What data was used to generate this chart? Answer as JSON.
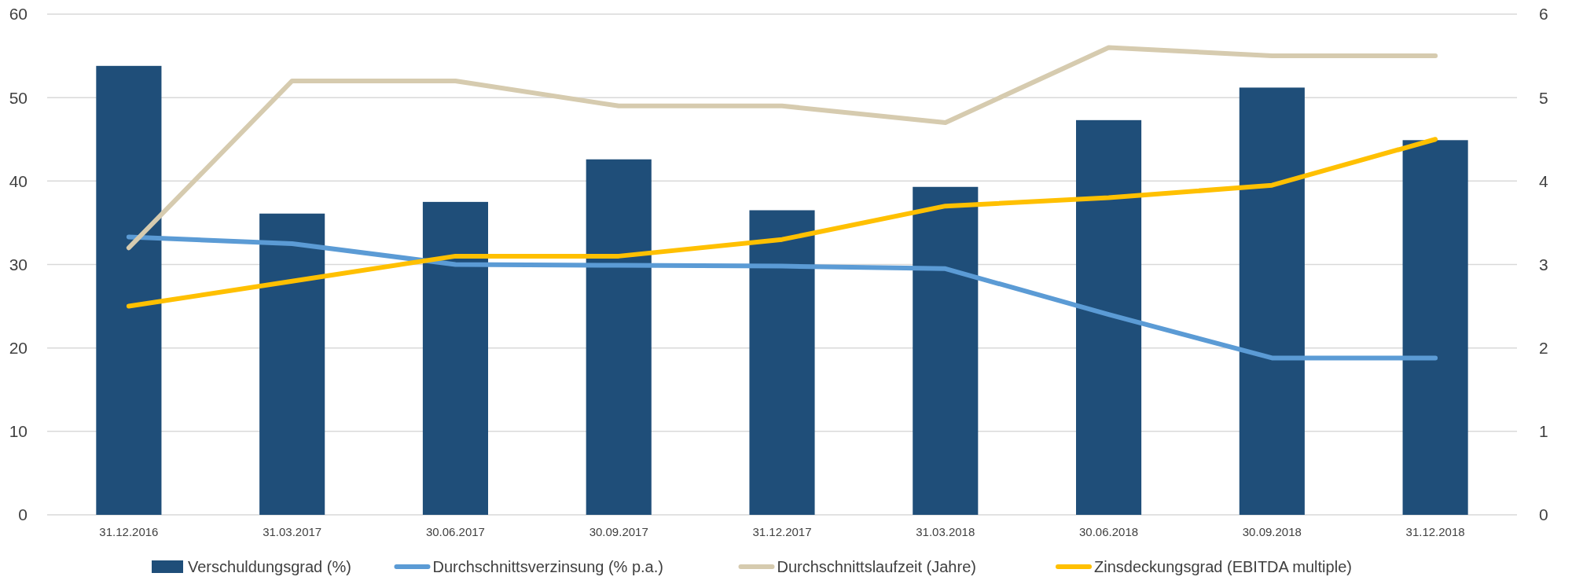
{
  "chart_data": {
    "type": "bar",
    "categories": [
      "31.12.2016",
      "31.03.2017",
      "30.06.2017",
      "30.09.2017",
      "31.12.2017",
      "31.03.2018",
      "30.06.2018",
      "30.09.2018",
      "31.12.2018"
    ],
    "series": [
      {
        "name": "Verschuldungsgrad (%)",
        "color": "#1f4e79",
        "values": [
          53.8,
          36.1,
          37.5,
          42.6,
          36.5,
          39.3,
          47.3,
          51.2,
          44.9
        ]
      },
      {
        "name": "Durchschnittsverzinsung (% p.a.)",
        "type": "line",
        "axis": "y2",
        "color": "#5b9bd5",
        "values": [
          3.33,
          3.25,
          3.0,
          2.99,
          2.98,
          2.95,
          2.4,
          1.88,
          1.88
        ]
      },
      {
        "name": "Durchschnittslaufzeit (Jahre)",
        "type": "line",
        "axis": "y2",
        "color": "#d6cbaf",
        "values": [
          3.2,
          5.2,
          5.2,
          4.9,
          4.9,
          4.7,
          5.6,
          5.5,
          5.5
        ]
      },
      {
        "name": "Zinsdeckungsgrad (EBITDA multiple)",
        "type": "line",
        "axis": "y2",
        "color": "#ffc000",
        "values": [
          2.5,
          2.8,
          3.1,
          3.1,
          3.3,
          3.7,
          3.8,
          3.95,
          4.5
        ]
      }
    ],
    "ylim": [
      0,
      60
    ],
    "yticks": [
      0,
      10,
      20,
      30,
      40,
      50,
      60
    ],
    "y2lim": [
      0,
      6
    ],
    "y2ticks": [
      0,
      1,
      2,
      3,
      4,
      5,
      6
    ],
    "grid": "y",
    "legend": "bottom",
    "marker": "none",
    "line_style": "solid"
  }
}
